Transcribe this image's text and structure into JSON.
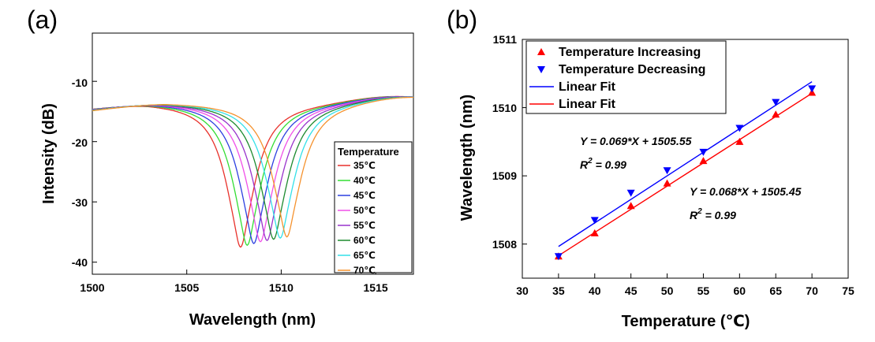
{
  "chart_data": [
    {
      "panel_label": "(a)",
      "type": "line",
      "xlabel": "Wavelength (nm)",
      "ylabel": "Intensity (dB)",
      "xlim": [
        1500,
        1517
      ],
      "ylim": [
        -42,
        -2
      ],
      "xticks": [
        "1500",
        "1505",
        "1510",
        "1515"
      ],
      "yticks": [
        "-10",
        "-20",
        "-30",
        "-40"
      ],
      "legend_title": "Temperature",
      "series": [
        {
          "name": "35℃",
          "color": "#e8312b",
          "dip_wavelength": 1507.85,
          "dip_intensity": -37.5
        },
        {
          "name": "40℃",
          "color": "#33dd33",
          "dip_wavelength": 1508.2,
          "dip_intensity": -37.2
        },
        {
          "name": "45℃",
          "color": "#2c3fe0",
          "dip_wavelength": 1508.55,
          "dip_intensity": -36.9
        },
        {
          "name": "50℃",
          "color": "#f050e8",
          "dip_wavelength": 1508.9,
          "dip_intensity": -36.6
        },
        {
          "name": "55℃",
          "color": "#9933cc",
          "dip_wavelength": 1509.25,
          "dip_intensity": -36.4
        },
        {
          "name": "60℃",
          "color": "#1d8a2e",
          "dip_wavelength": 1509.6,
          "dip_intensity": -36.2
        },
        {
          "name": "65℃",
          "color": "#33e0e8",
          "dip_wavelength": 1509.95,
          "dip_intensity": -36.0
        },
        {
          "name": "70℃",
          "color": "#f5922e",
          "dip_wavelength": 1510.3,
          "dip_intensity": -35.8
        }
      ]
    },
    {
      "panel_label": "(b)",
      "type": "scatter",
      "xlabel": "Temperature (℃)",
      "ylabel": "Wavelength (nm)",
      "xlim": [
        30,
        75
      ],
      "ylim": [
        1507.5,
        1511
      ],
      "xticks": [
        "30",
        "35",
        "40",
        "45",
        "50",
        "55",
        "60",
        "65",
        "70",
        "75"
      ],
      "yticks": [
        "1508",
        "1509",
        "1510",
        "1511"
      ],
      "x": [
        35,
        40,
        45,
        50,
        55,
        60,
        65,
        70
      ],
      "series": [
        {
          "name": "Temperature Increasing",
          "marker": "triangle-up",
          "color": "#ff0000",
          "values": [
            1507.82,
            1508.16,
            1508.56,
            1508.89,
            1509.22,
            1509.5,
            1509.9,
            1510.22
          ]
        },
        {
          "name": "Temperature Decreasing",
          "marker": "triangle-down",
          "color": "#0000ff",
          "values": [
            1507.82,
            1508.35,
            1508.75,
            1509.08,
            1509.35,
            1509.7,
            1510.08,
            1510.28
          ]
        },
        {
          "name": "Linear Fit",
          "type": "line",
          "color": "#0000ff",
          "slope": 0.069,
          "intercept": 1505.55
        },
        {
          "name": "Linear Fit",
          "type": "line",
          "color": "#ff0000",
          "slope": 0.068,
          "intercept": 1505.45
        }
      ],
      "annotations": [
        {
          "equation": "Y = 0.069*X + 1505.55",
          "r2_label": "R",
          "r2_sup": "2",
          "r2_value": " = 0.99"
        },
        {
          "equation": "Y = 0.068*X + 1505.45",
          "r2_label": "R",
          "r2_sup": "2",
          "r2_value": " = 0.99"
        }
      ]
    }
  ]
}
